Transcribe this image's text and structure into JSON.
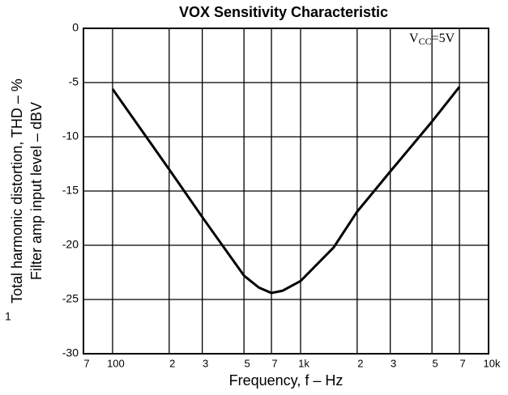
{
  "chart_data": {
    "type": "line",
    "title": "VOX Sensitivity Characteristic",
    "xlabel": "Frequency, f – Hz",
    "ylabel": [
      "Total harmonic distortion, THD – %",
      "Filter amp input level – dBV"
    ],
    "annotations": [
      {
        "main": "V",
        "sub": "CC",
        "rest": "=5V"
      },
      "1"
    ],
    "xscale": "log",
    "grid": true,
    "xlim": [
      70,
      10000
    ],
    "xticks": [
      {
        "value": 70,
        "label": "7"
      },
      100,
      {
        "value": 200,
        "label": "2"
      },
      {
        "value": 300,
        "label": "3"
      },
      {
        "value": 500,
        "label": "5"
      },
      {
        "value": 700,
        "label": "7"
      },
      {
        "value": 1000,
        "label": "1k"
      },
      {
        "value": 2000,
        "label": "2"
      },
      {
        "value": 3000,
        "label": "3"
      },
      {
        "value": 5000,
        "label": "5"
      },
      {
        "value": 7000,
        "label": "7"
      },
      {
        "value": 10000,
        "label": "10k"
      }
    ],
    "ylim": [
      -30,
      0
    ],
    "yticks": [
      0,
      -5,
      -10,
      -15,
      -20,
      -25,
      -30
    ],
    "x": [
      100,
      200,
      300,
      500,
      600,
      700,
      800,
      1000,
      1500,
      2000,
      3000,
      5000,
      7000
    ],
    "series": [
      {
        "color": "#000000",
        "values": [
          -5.6,
          -13.0,
          -17.4,
          -22.8,
          -23.9,
          -24.4,
          -24.2,
          -23.3,
          -20.2,
          -16.9,
          -13.2,
          -8.6,
          -5.4
        ]
      }
    ]
  }
}
